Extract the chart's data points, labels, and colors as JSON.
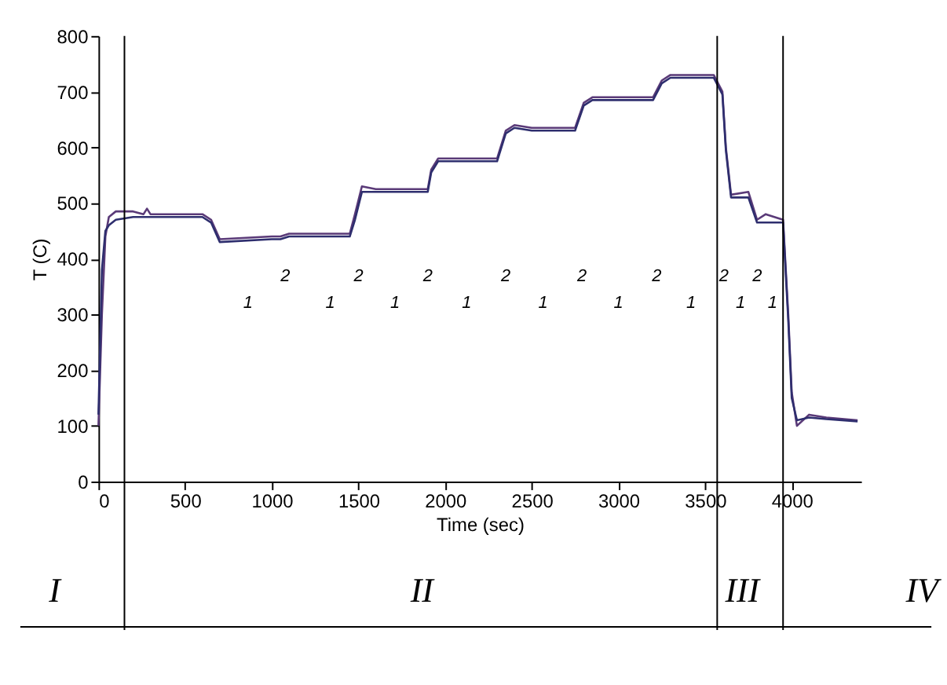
{
  "chart_data": {
    "type": "line",
    "xlabel": "Time (sec)",
    "ylabel": "T (C)",
    "xlim": [
      0,
      4400
    ],
    "ylim": [
      0,
      800
    ],
    "xticks": [
      0,
      500,
      1000,
      1500,
      2000,
      2500,
      3000,
      3500,
      4000
    ],
    "yticks": [
      0,
      100,
      200,
      300,
      400,
      500,
      600,
      700,
      800
    ],
    "grid": false,
    "legend": false,
    "marker": "none",
    "line_style": "solid",
    "series": [
      {
        "color": "#5a3a78",
        "x": [
          0,
          20,
          40,
          60,
          100,
          200,
          260,
          280,
          300,
          400,
          600,
          650,
          700,
          1000,
          1050,
          1100,
          1450,
          1480,
          1520,
          1600,
          1900,
          1920,
          1960,
          2300,
          2350,
          2400,
          2500,
          2750,
          2800,
          2850,
          3200,
          3250,
          3300,
          3550,
          3600,
          3620,
          3650,
          3750,
          3800,
          3850,
          3950,
          3980,
          4000,
          4030,
          4100,
          4200,
          4380
        ],
        "values": [
          100,
          300,
          440,
          475,
          485,
          485,
          480,
          490,
          480,
          480,
          480,
          470,
          435,
          440,
          440,
          445,
          445,
          480,
          530,
          525,
          525,
          560,
          580,
          580,
          630,
          640,
          635,
          635,
          680,
          690,
          690,
          720,
          730,
          730,
          700,
          600,
          515,
          520,
          470,
          480,
          470,
          300,
          160,
          100,
          120,
          115,
          110
        ]
      },
      {
        "color": "#2e2e6e",
        "x": [
          0,
          20,
          40,
          60,
          100,
          200,
          600,
          650,
          700,
          1000,
          1050,
          1100,
          1450,
          1480,
          1520,
          1600,
          1900,
          1920,
          1960,
          2300,
          2350,
          2400,
          2500,
          2750,
          2800,
          2850,
          3200,
          3250,
          3300,
          3550,
          3600,
          3620,
          3650,
          3750,
          3800,
          3850,
          3950,
          3980,
          4000,
          4030,
          4100,
          4200,
          4380
        ],
        "values": [
          120,
          380,
          450,
          460,
          470,
          475,
          475,
          465,
          430,
          435,
          435,
          440,
          440,
          470,
          520,
          520,
          520,
          555,
          575,
          575,
          625,
          635,
          630,
          630,
          675,
          685,
          685,
          715,
          725,
          725,
          695,
          595,
          510,
          510,
          465,
          465,
          465,
          290,
          150,
          110,
          115,
          112,
          108
        ]
      }
    ],
    "ref_lines": [
      {
        "axis": "x",
        "value": 150,
        "label": null
      },
      {
        "axis": "x",
        "value": 3570,
        "label": null
      },
      {
        "axis": "x",
        "value": 3950,
        "label": null
      }
    ],
    "annotations": [
      "I",
      "II",
      "III",
      "IV",
      "1",
      "1",
      "1",
      "1",
      "1",
      "1",
      "1",
      "1",
      "1",
      "2",
      "2",
      "2",
      "2",
      "2",
      "2",
      "2",
      "2"
    ]
  }
}
